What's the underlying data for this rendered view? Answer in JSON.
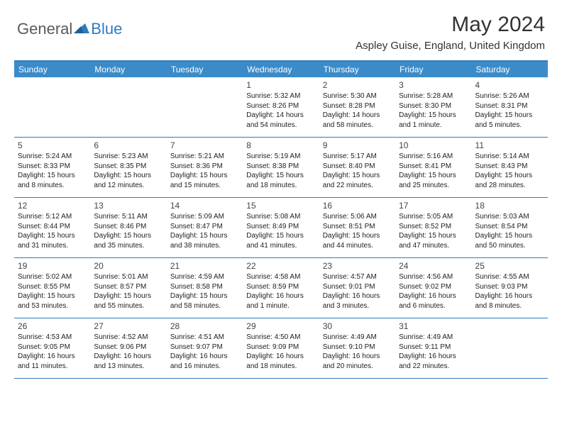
{
  "logo": {
    "general": "General",
    "blue": "Blue"
  },
  "title": "May 2024",
  "location": "Aspley Guise, England, United Kingdom",
  "colors": {
    "header_bg": "#3b8bc9",
    "border": "#2f7bbf",
    "text": "#222222"
  },
  "weekdays": [
    "Sunday",
    "Monday",
    "Tuesday",
    "Wednesday",
    "Thursday",
    "Friday",
    "Saturday"
  ],
  "weeks": [
    [
      null,
      null,
      null,
      {
        "d": "1",
        "sr": "Sunrise: 5:32 AM",
        "ss": "Sunset: 8:26 PM",
        "dl1": "Daylight: 14 hours",
        "dl2": "and 54 minutes."
      },
      {
        "d": "2",
        "sr": "Sunrise: 5:30 AM",
        "ss": "Sunset: 8:28 PM",
        "dl1": "Daylight: 14 hours",
        "dl2": "and 58 minutes."
      },
      {
        "d": "3",
        "sr": "Sunrise: 5:28 AM",
        "ss": "Sunset: 8:30 PM",
        "dl1": "Daylight: 15 hours",
        "dl2": "and 1 minute."
      },
      {
        "d": "4",
        "sr": "Sunrise: 5:26 AM",
        "ss": "Sunset: 8:31 PM",
        "dl1": "Daylight: 15 hours",
        "dl2": "and 5 minutes."
      }
    ],
    [
      {
        "d": "5",
        "sr": "Sunrise: 5:24 AM",
        "ss": "Sunset: 8:33 PM",
        "dl1": "Daylight: 15 hours",
        "dl2": "and 8 minutes."
      },
      {
        "d": "6",
        "sr": "Sunrise: 5:23 AM",
        "ss": "Sunset: 8:35 PM",
        "dl1": "Daylight: 15 hours",
        "dl2": "and 12 minutes."
      },
      {
        "d": "7",
        "sr": "Sunrise: 5:21 AM",
        "ss": "Sunset: 8:36 PM",
        "dl1": "Daylight: 15 hours",
        "dl2": "and 15 minutes."
      },
      {
        "d": "8",
        "sr": "Sunrise: 5:19 AM",
        "ss": "Sunset: 8:38 PM",
        "dl1": "Daylight: 15 hours",
        "dl2": "and 18 minutes."
      },
      {
        "d": "9",
        "sr": "Sunrise: 5:17 AM",
        "ss": "Sunset: 8:40 PM",
        "dl1": "Daylight: 15 hours",
        "dl2": "and 22 minutes."
      },
      {
        "d": "10",
        "sr": "Sunrise: 5:16 AM",
        "ss": "Sunset: 8:41 PM",
        "dl1": "Daylight: 15 hours",
        "dl2": "and 25 minutes."
      },
      {
        "d": "11",
        "sr": "Sunrise: 5:14 AM",
        "ss": "Sunset: 8:43 PM",
        "dl1": "Daylight: 15 hours",
        "dl2": "and 28 minutes."
      }
    ],
    [
      {
        "d": "12",
        "sr": "Sunrise: 5:12 AM",
        "ss": "Sunset: 8:44 PM",
        "dl1": "Daylight: 15 hours",
        "dl2": "and 31 minutes."
      },
      {
        "d": "13",
        "sr": "Sunrise: 5:11 AM",
        "ss": "Sunset: 8:46 PM",
        "dl1": "Daylight: 15 hours",
        "dl2": "and 35 minutes."
      },
      {
        "d": "14",
        "sr": "Sunrise: 5:09 AM",
        "ss": "Sunset: 8:47 PM",
        "dl1": "Daylight: 15 hours",
        "dl2": "and 38 minutes."
      },
      {
        "d": "15",
        "sr": "Sunrise: 5:08 AM",
        "ss": "Sunset: 8:49 PM",
        "dl1": "Daylight: 15 hours",
        "dl2": "and 41 minutes."
      },
      {
        "d": "16",
        "sr": "Sunrise: 5:06 AM",
        "ss": "Sunset: 8:51 PM",
        "dl1": "Daylight: 15 hours",
        "dl2": "and 44 minutes."
      },
      {
        "d": "17",
        "sr": "Sunrise: 5:05 AM",
        "ss": "Sunset: 8:52 PM",
        "dl1": "Daylight: 15 hours",
        "dl2": "and 47 minutes."
      },
      {
        "d": "18",
        "sr": "Sunrise: 5:03 AM",
        "ss": "Sunset: 8:54 PM",
        "dl1": "Daylight: 15 hours",
        "dl2": "and 50 minutes."
      }
    ],
    [
      {
        "d": "19",
        "sr": "Sunrise: 5:02 AM",
        "ss": "Sunset: 8:55 PM",
        "dl1": "Daylight: 15 hours",
        "dl2": "and 53 minutes."
      },
      {
        "d": "20",
        "sr": "Sunrise: 5:01 AM",
        "ss": "Sunset: 8:57 PM",
        "dl1": "Daylight: 15 hours",
        "dl2": "and 55 minutes."
      },
      {
        "d": "21",
        "sr": "Sunrise: 4:59 AM",
        "ss": "Sunset: 8:58 PM",
        "dl1": "Daylight: 15 hours",
        "dl2": "and 58 minutes."
      },
      {
        "d": "22",
        "sr": "Sunrise: 4:58 AM",
        "ss": "Sunset: 8:59 PM",
        "dl1": "Daylight: 16 hours",
        "dl2": "and 1 minute."
      },
      {
        "d": "23",
        "sr": "Sunrise: 4:57 AM",
        "ss": "Sunset: 9:01 PM",
        "dl1": "Daylight: 16 hours",
        "dl2": "and 3 minutes."
      },
      {
        "d": "24",
        "sr": "Sunrise: 4:56 AM",
        "ss": "Sunset: 9:02 PM",
        "dl1": "Daylight: 16 hours",
        "dl2": "and 6 minutes."
      },
      {
        "d": "25",
        "sr": "Sunrise: 4:55 AM",
        "ss": "Sunset: 9:03 PM",
        "dl1": "Daylight: 16 hours",
        "dl2": "and 8 minutes."
      }
    ],
    [
      {
        "d": "26",
        "sr": "Sunrise: 4:53 AM",
        "ss": "Sunset: 9:05 PM",
        "dl1": "Daylight: 16 hours",
        "dl2": "and 11 minutes."
      },
      {
        "d": "27",
        "sr": "Sunrise: 4:52 AM",
        "ss": "Sunset: 9:06 PM",
        "dl1": "Daylight: 16 hours",
        "dl2": "and 13 minutes."
      },
      {
        "d": "28",
        "sr": "Sunrise: 4:51 AM",
        "ss": "Sunset: 9:07 PM",
        "dl1": "Daylight: 16 hours",
        "dl2": "and 16 minutes."
      },
      {
        "d": "29",
        "sr": "Sunrise: 4:50 AM",
        "ss": "Sunset: 9:09 PM",
        "dl1": "Daylight: 16 hours",
        "dl2": "and 18 minutes."
      },
      {
        "d": "30",
        "sr": "Sunrise: 4:49 AM",
        "ss": "Sunset: 9:10 PM",
        "dl1": "Daylight: 16 hours",
        "dl2": "and 20 minutes."
      },
      {
        "d": "31",
        "sr": "Sunrise: 4:49 AM",
        "ss": "Sunset: 9:11 PM",
        "dl1": "Daylight: 16 hours",
        "dl2": "and 22 minutes."
      },
      null
    ]
  ]
}
